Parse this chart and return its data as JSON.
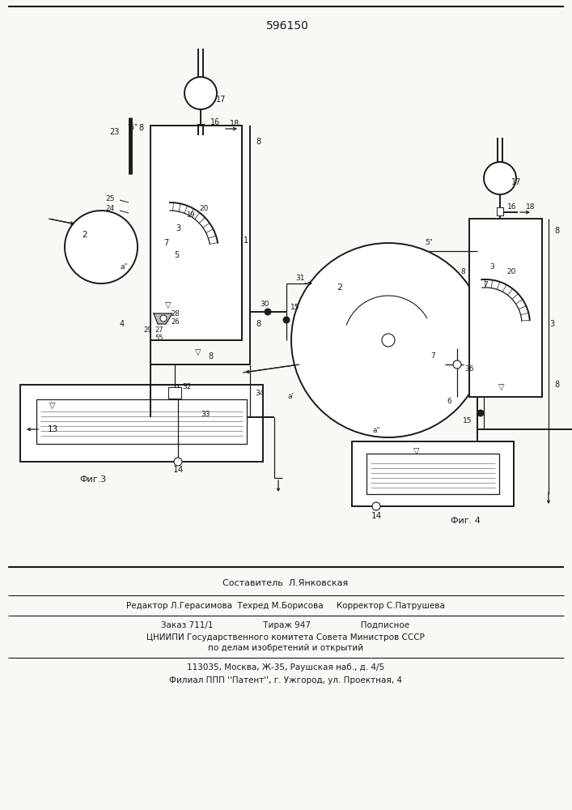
{
  "title": "596150",
  "bg_color": "#f8f8f5",
  "line_color": "#1a1a1a",
  "fig3_caption": "Фиг.3",
  "fig4_caption": "Фиг. 4",
  "footer_lines": [
    "Составитель  Л.Янковская",
    "Редактор Л.Герасимова  Техред М.Борисова     Корректор С.Патрушева",
    "Заказ 711/1                   Тираж 947                   Подписное",
    "ЦНИИПИ Государственного комитета Совета Министров СССР",
    "по делам изобретений и открытий",
    "113035, Москва, Ж-35, Раушская наб., д. 4/5",
    "Филиал ППП ''Патент'', г. Ужгород, ул. Проектная, 4"
  ]
}
